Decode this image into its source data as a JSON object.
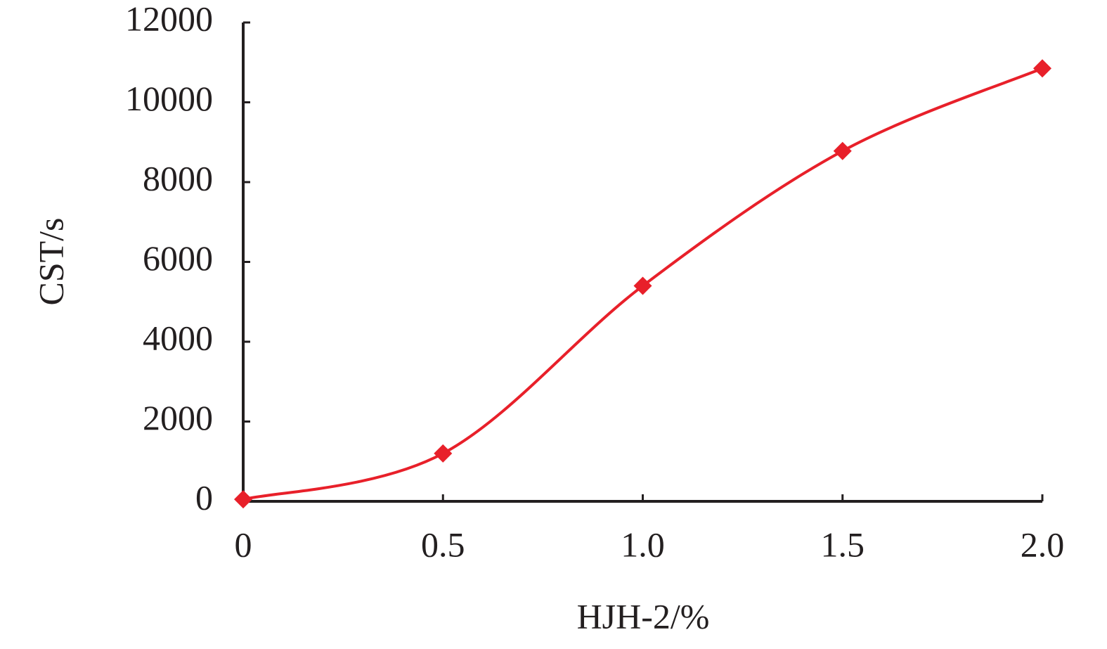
{
  "chart_data": {
    "type": "line",
    "xlabel": "HJH-2/%",
    "ylabel": "CST/s",
    "x": [
      0,
      0.5,
      1,
      1.5,
      2
    ],
    "series": [
      {
        "color": "#e8202a",
        "values": [
          50,
          1200,
          5400,
          8780,
          10850
        ]
      }
    ],
    "xlim": [
      0,
      2
    ],
    "ylim": [
      0,
      12000
    ],
    "xticks": [
      0,
      0.5,
      {
        "value": 1,
        "label": "1.0"
      },
      1.5,
      {
        "value": 2,
        "label": "2.0"
      }
    ],
    "yticks": [
      0,
      2000,
      4000,
      6000,
      8000,
      10000,
      12000
    ],
    "smooth": true,
    "marker": "diamond"
  }
}
